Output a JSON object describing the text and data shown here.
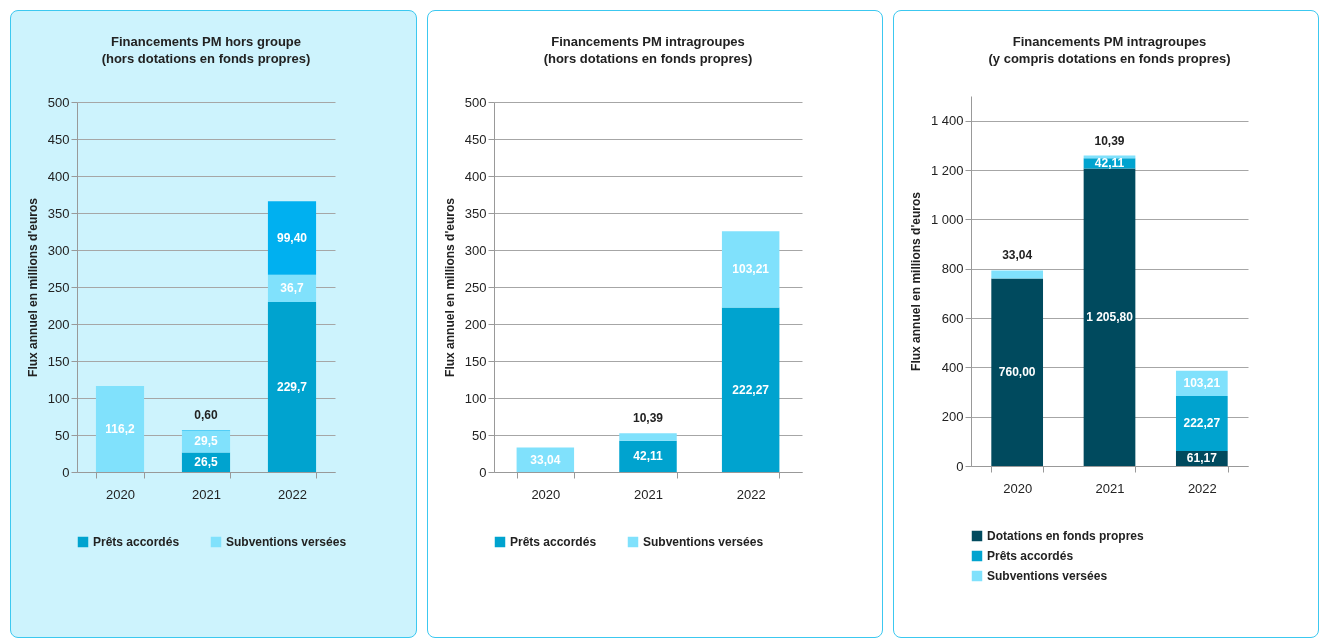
{
  "chart_data": [
    {
      "type": "bar",
      "title": "Financements PM hors groupe",
      "subtitle": "(hors dotations en fonds propres)",
      "ylabel": "Flux annuel en millions d'euros",
      "categories": [
        "2020",
        "2021",
        "2022"
      ],
      "stacked": true,
      "ylim": [
        0,
        500
      ],
      "yticks": [
        0,
        50,
        100,
        150,
        200,
        250,
        300,
        350,
        400,
        450,
        500
      ],
      "grid": "y",
      "legend": "bottom",
      "series": [
        {
          "name": "Prêts accordés",
          "color": "#00a3cf",
          "values": [
            null,
            26.5,
            229.7
          ],
          "value_labels": [
            null,
            "26,5",
            "229,7"
          ]
        },
        {
          "name": "Subventions versées",
          "color": "#80e1fc",
          "values": [
            116.2,
            29.5,
            36.7
          ],
          "value_labels": [
            "116,2",
            "29,5",
            "36,7"
          ]
        },
        {
          "color": "#00b0f0",
          "values": [
            null,
            0.6,
            99.4
          ],
          "value_labels": [
            null,
            "0,60",
            "99,40"
          ]
        }
      ]
    },
    {
      "type": "bar",
      "title": "Financements PM intragroupes",
      "subtitle": "(hors dotations en fonds propres)",
      "ylabel": "Flux annuel en millions d'euros",
      "categories": [
        "2020",
        "2021",
        "2022"
      ],
      "stacked": true,
      "ylim": [
        0,
        500
      ],
      "yticks": [
        0,
        50,
        100,
        150,
        200,
        250,
        300,
        350,
        400,
        450,
        500
      ],
      "grid": "y",
      "legend": "bottom",
      "series": [
        {
          "name": "Prêts accordés",
          "color": "#00a3cf",
          "values": [
            null,
            42.11,
            222.27
          ],
          "value_labels": [
            null,
            "42,11",
            "222,27"
          ]
        },
        {
          "name": "Subventions versées",
          "color": "#80e1fc",
          "values": [
            33.04,
            10.39,
            103.21
          ],
          "value_labels": [
            "33,04",
            "10,39",
            "103,21"
          ]
        }
      ]
    },
    {
      "type": "bar",
      "title": "Financements PM intragroupes",
      "subtitle": "(y compris dotations en fonds propres)",
      "ylabel": "Flux annuel en millions d'euros",
      "categories": [
        "2020",
        "2021",
        "2022"
      ],
      "stacked": true,
      "ylim": [
        0,
        1500
      ],
      "yticks": [
        0,
        200,
        400,
        600,
        800,
        {
          "value": 1000,
          "label": "1 000"
        },
        {
          "value": 1200,
          "label": "1 200"
        },
        {
          "value": 1400,
          "label": "1 400"
        }
      ],
      "grid": "y",
      "legend": "bottom",
      "series": [
        {
          "name": "Dotations en fonds propres",
          "color": "#004a5e",
          "values": [
            760.0,
            1205.8,
            61.17
          ],
          "value_labels": [
            "760,00",
            "1 205,80",
            "61,17"
          ]
        },
        {
          "name": "Prêts accordés",
          "color": "#00a3cf",
          "values": [
            null,
            42.11,
            222.27
          ],
          "value_labels": [
            null,
            "42,11",
            "222,27"
          ]
        },
        {
          "name": "Subventions versées",
          "color": "#80e1fc",
          "values": [
            33.04,
            10.39,
            103.21
          ],
          "value_labels": [
            "33,04",
            "10,39",
            "103,21"
          ]
        }
      ]
    }
  ]
}
